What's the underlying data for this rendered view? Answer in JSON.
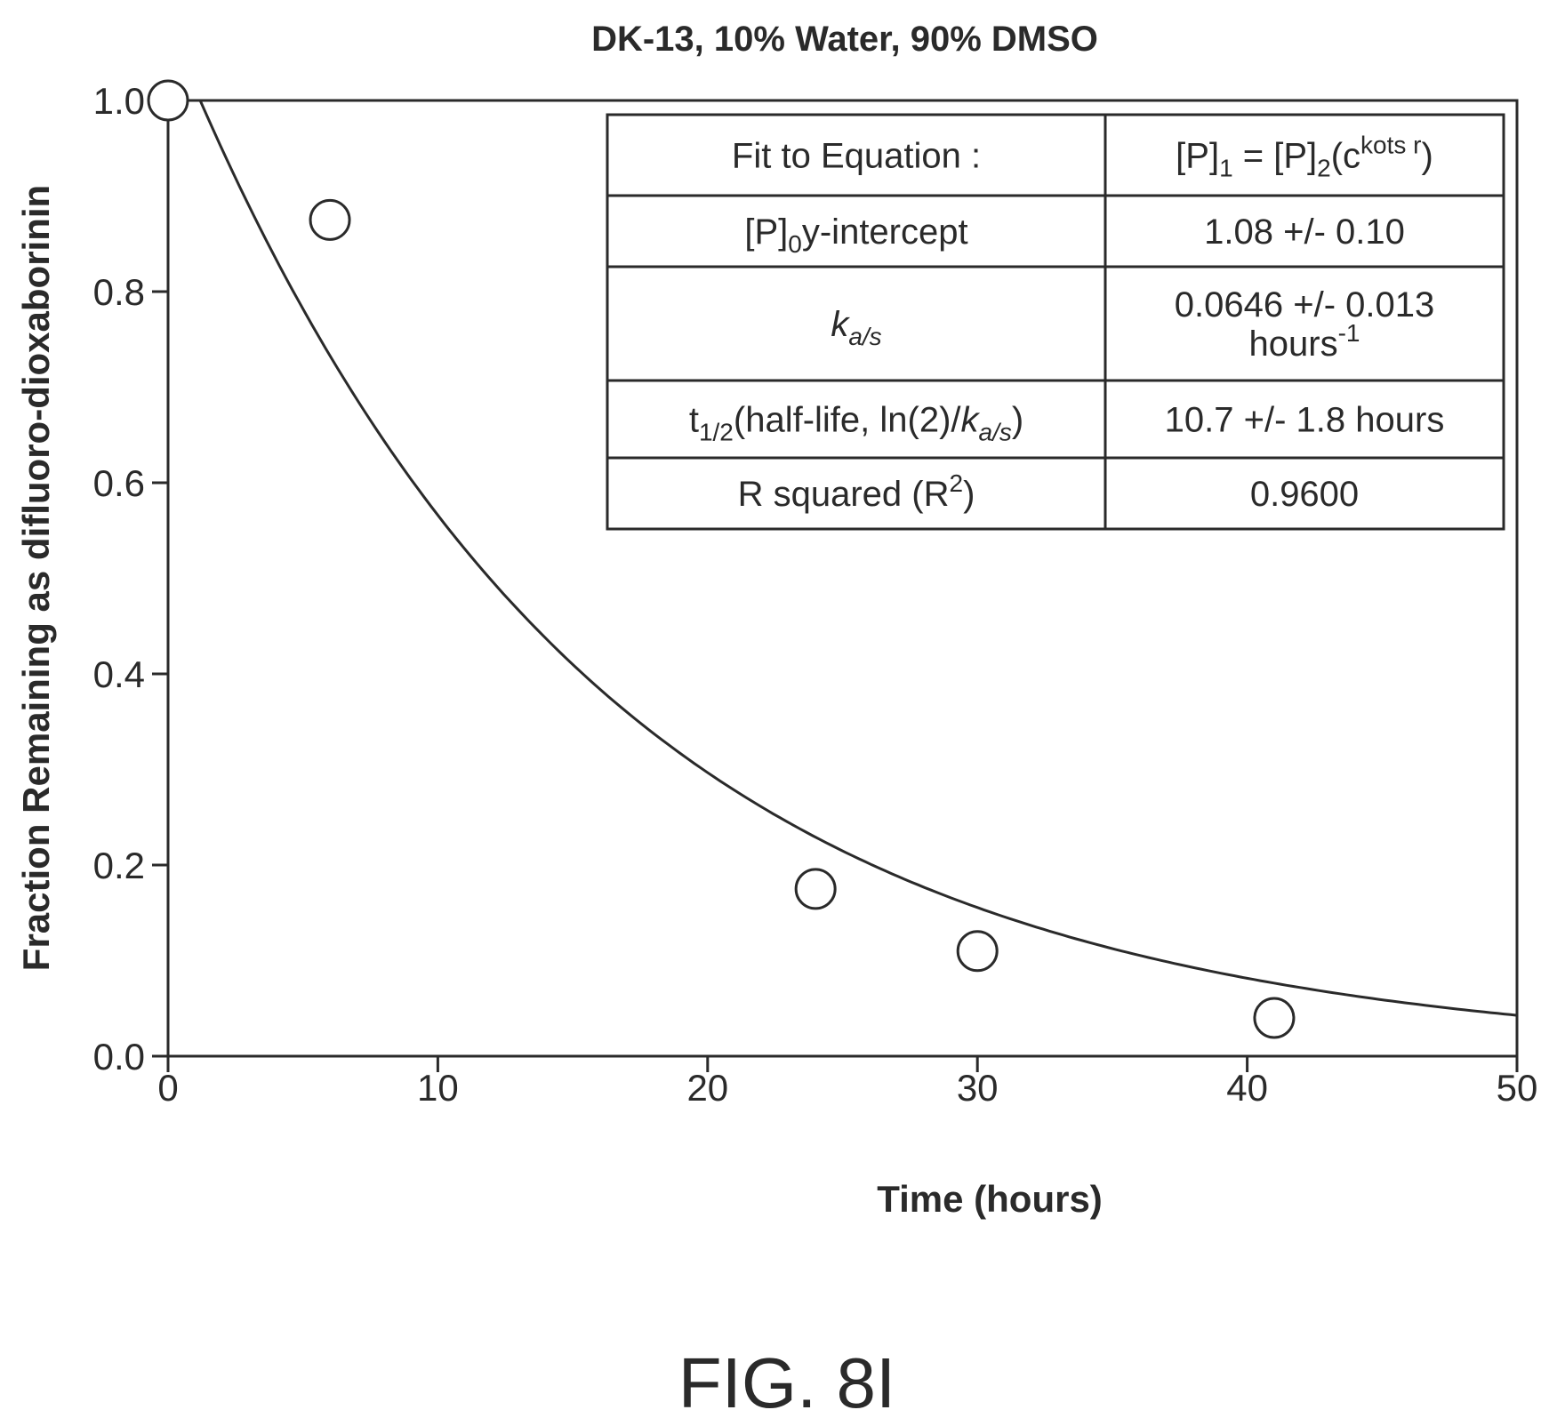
{
  "chart_data": {
    "type": "scatter",
    "title": "DK-13, 10% Water, 90% DMSO",
    "xlabel": "Time (hours)",
    "ylabel": "Fraction Remaining as difluoro-dioxaborinin",
    "xlim": [
      0,
      50
    ],
    "ylim": [
      0,
      1.0
    ],
    "x_ticks": [
      "0",
      "10",
      "20",
      "30",
      "40",
      "50"
    ],
    "y_ticks": [
      "0.0",
      "0.2",
      "0.4",
      "0.6",
      "0.8",
      "1.0"
    ],
    "grid": false,
    "series": [
      {
        "x": [
          0,
          6,
          24,
          30,
          41
        ],
        "y": [
          1.0,
          0.875,
          0.175,
          0.11,
          0.04
        ]
      }
    ],
    "fit": {
      "y_intercept": 1.08,
      "rate": 0.0646,
      "x_start": 1.2,
      "x_end": 50
    },
    "fit_table": {
      "rows": [
        {
          "label": {
            "parts": [
              {
                "t": "Fit to Equation :"
              }
            ]
          },
          "value": {
            "parts": [
              {
                "t": "[P]"
              },
              {
                "t": "1",
                "sub": true
              },
              {
                "t": " = [P]"
              },
              {
                "t": "2",
                "sub": true
              },
              {
                "t": "(c"
              },
              {
                "t": "kots r",
                "sup": true
              },
              {
                "t": ")"
              }
            ]
          }
        },
        {
          "label": {
            "parts": [
              {
                "t": "[P]"
              },
              {
                "t": "0",
                "sub": true
              },
              {
                "t": "y-intercept"
              }
            ]
          },
          "value": {
            "parts": [
              {
                "t": "1.08 +/- 0.10"
              }
            ]
          }
        },
        {
          "label": {
            "parts": [
              {
                "t": "k",
                "italic": true
              },
              {
                "t": "a/s",
                "sub": true,
                "italic": true
              }
            ]
          },
          "value_lines": [
            {
              "parts": [
                {
                  "t": "0.0646 +/- 0.013"
                }
              ]
            },
            {
              "parts": [
                {
                  "t": "hours"
                },
                {
                  "t": "-1",
                  "sup": true
                }
              ]
            }
          ]
        },
        {
          "label": {
            "parts": [
              {
                "t": "t"
              },
              {
                "t": "1/2",
                "sub": true
              },
              {
                "t": "(half-life, ln(2)/"
              },
              {
                "t": "k",
                "italic": true
              },
              {
                "t": "a/s",
                "sub": true,
                "italic": true
              },
              {
                "t": ")"
              }
            ]
          },
          "value": {
            "parts": [
              {
                "t": "10.7 +/- 1.8 hours"
              }
            ]
          }
        },
        {
          "label": {
            "parts": [
              {
                "t": "R squared (R"
              },
              {
                "t": "2",
                "sup": true
              },
              {
                "t": ")"
              }
            ]
          },
          "value": {
            "parts": [
              {
                "t": "0.9600"
              }
            ]
          }
        }
      ]
    }
  },
  "figure_label": "FIG. 8I"
}
